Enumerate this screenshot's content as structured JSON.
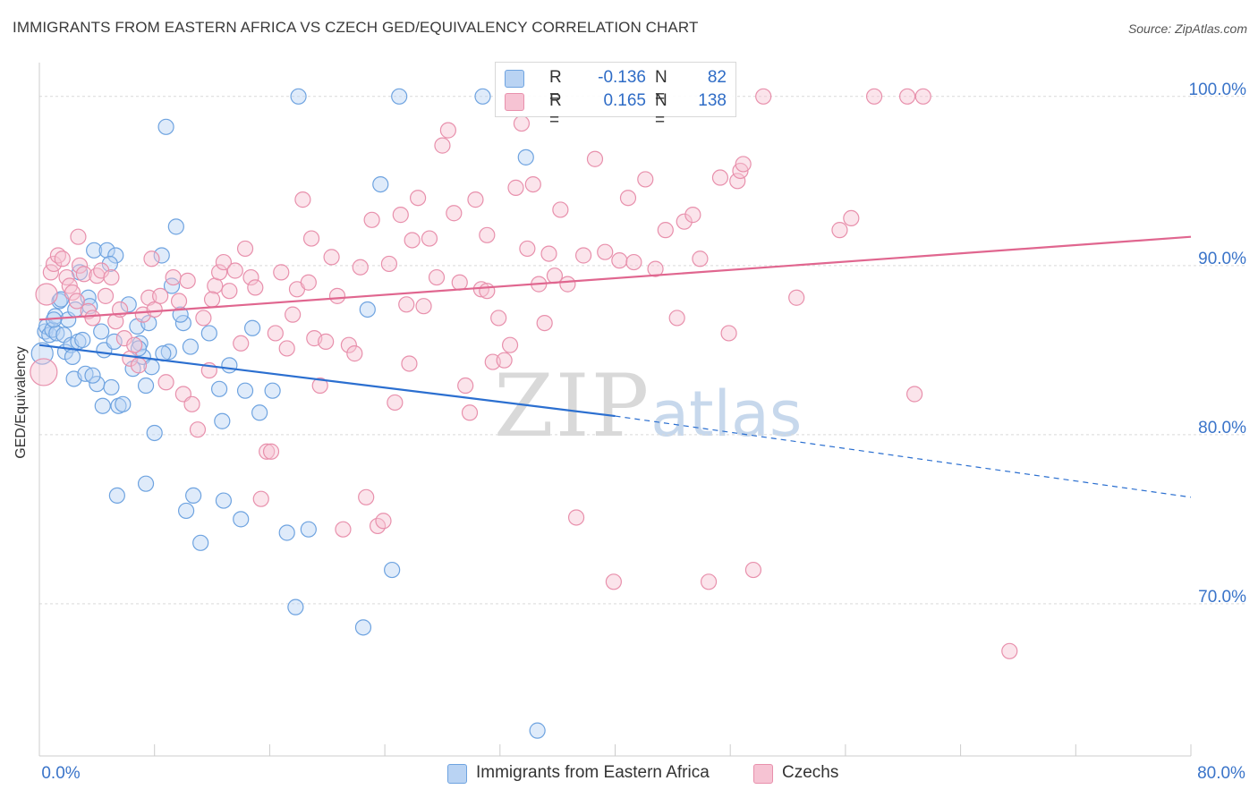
{
  "title": "IMMIGRANTS FROM EASTERN AFRICA VS CZECH GED/EQUIVALENCY CORRELATION CHART",
  "source": "Source: ZipAtlas.com",
  "watermark": {
    "zip": "ZIP",
    "atlas": "atlas"
  },
  "legend": {
    "series1": {
      "r_label": "R =",
      "r_value": "-0.136",
      "n_label": "N =",
      "n_value": "82"
    },
    "series2": {
      "r_label": "R =",
      "r_value": "0.165",
      "n_label": "N =",
      "n_value": "138"
    }
  },
  "colors": {
    "blue": "#6ea3e0",
    "blue_fill": "#b9d3f3",
    "blue_line": "#2b6fd0",
    "pink": "#e890ac",
    "pink_fill": "#f6c3d3",
    "pink_line": "#e0668f",
    "tick_label": "#3a74c9",
    "grid": "#d9d9d9"
  },
  "chart_data": {
    "type": "scatter",
    "title": "IMMIGRANTS FROM EASTERN AFRICA VS CZECH GED/EQUIVALENCY CORRELATION CHART",
    "xlabel": "",
    "ylabel": "GED/Equivalency",
    "xlim": [
      0,
      80
    ],
    "ylim": [
      61,
      102
    ],
    "x_tick_labels": [
      "0.0%",
      "80.0%"
    ],
    "y_ticks": [
      70,
      80,
      90,
      100
    ],
    "y_tick_labels": [
      "70.0%",
      "80.0%",
      "90.0%",
      "100.0%"
    ],
    "grid": true,
    "legend_position": "top-center",
    "series": [
      {
        "name": "Immigrants from Eastern Africa",
        "r": -0.136,
        "n": 82,
        "trend": {
          "x1": 0,
          "y1": 85.3,
          "x2": 40,
          "y2": 81.1,
          "dashed_to_x": 80,
          "dashed_to_y": 76.3
        },
        "points": [
          [
            0.2,
            84.8
          ],
          [
            0.4,
            86.1
          ],
          [
            0.5,
            86.4
          ],
          [
            0.7,
            85.9
          ],
          [
            0.9,
            86.2
          ],
          [
            1.1,
            87.0
          ],
          [
            1.2,
            86.0
          ],
          [
            1.4,
            87.9
          ],
          [
            1.5,
            88.0
          ],
          [
            1.7,
            85.9
          ],
          [
            1.8,
            84.9
          ],
          [
            2.0,
            86.8
          ],
          [
            2.2,
            85.3
          ],
          [
            2.4,
            83.3
          ],
          [
            2.5,
            87.4
          ],
          [
            2.7,
            85.5
          ],
          [
            2.8,
            89.6
          ],
          [
            3.0,
            85.6
          ],
          [
            3.2,
            83.6
          ],
          [
            3.4,
            88.1
          ],
          [
            3.5,
            87.6
          ],
          [
            3.8,
            90.9
          ],
          [
            4.0,
            83.0
          ],
          [
            4.3,
            86.1
          ],
          [
            4.4,
            81.7
          ],
          [
            4.5,
            85.0
          ],
          [
            4.7,
            90.9
          ],
          [
            5.0,
            82.8
          ],
          [
            5.2,
            85.5
          ],
          [
            5.3,
            90.6
          ],
          [
            5.5,
            81.7
          ],
          [
            5.8,
            81.8
          ],
          [
            6.2,
            87.7
          ],
          [
            6.5,
            83.9
          ],
          [
            6.8,
            86.4
          ],
          [
            7.0,
            85.4
          ],
          [
            7.2,
            84.6
          ],
          [
            7.4,
            82.9
          ],
          [
            7.6,
            86.6
          ],
          [
            7.8,
            84.0
          ],
          [
            8.0,
            80.1
          ],
          [
            8.5,
            90.6
          ],
          [
            9.0,
            84.9
          ],
          [
            9.2,
            88.8
          ],
          [
            9.5,
            92.3
          ],
          [
            10.0,
            86.6
          ],
          [
            10.5,
            85.2
          ],
          [
            11.2,
            73.6
          ],
          [
            11.8,
            86.0
          ],
          [
            12.5,
            82.7
          ],
          [
            12.8,
            76.1
          ],
          [
            13.2,
            84.1
          ],
          [
            14.0,
            75.0
          ],
          [
            14.3,
            82.6
          ],
          [
            14.8,
            86.3
          ],
          [
            15.3,
            81.3
          ],
          [
            16.2,
            82.6
          ],
          [
            17.2,
            74.2
          ],
          [
            17.8,
            69.8
          ],
          [
            18.0,
            100.0
          ],
          [
            18.7,
            74.4
          ],
          [
            22.5,
            68.6
          ],
          [
            22.8,
            87.4
          ],
          [
            24.5,
            72.0
          ],
          [
            25.0,
            100.0
          ],
          [
            30.8,
            100.0
          ],
          [
            33.8,
            96.4
          ],
          [
            34.6,
            62.5
          ],
          [
            23.7,
            94.8
          ],
          [
            8.8,
            98.2
          ],
          [
            5.4,
            76.4
          ],
          [
            7.4,
            77.1
          ],
          [
            10.2,
            75.5
          ],
          [
            10.7,
            76.4
          ],
          [
            12.7,
            80.8
          ],
          [
            9.8,
            87.1
          ],
          [
            8.6,
            84.8
          ],
          [
            6.9,
            85.1
          ],
          [
            3.7,
            83.5
          ],
          [
            4.9,
            90.1
          ],
          [
            2.3,
            84.6
          ],
          [
            1.0,
            86.8
          ]
        ]
      },
      {
        "name": "Czechs",
        "r": 0.165,
        "n": 138,
        "trend": {
          "x1": 0,
          "y1": 86.8,
          "x2": 80,
          "y2": 91.7
        },
        "points": [
          [
            0.3,
            83.7
          ],
          [
            0.5,
            88.3
          ],
          [
            0.8,
            89.6
          ],
          [
            1.0,
            90.1
          ],
          [
            1.3,
            90.6
          ],
          [
            1.6,
            90.4
          ],
          [
            1.9,
            89.3
          ],
          [
            2.1,
            88.8
          ],
          [
            2.3,
            88.4
          ],
          [
            2.6,
            87.9
          ],
          [
            2.8,
            90.0
          ],
          [
            3.1,
            89.5
          ],
          [
            3.4,
            87.3
          ],
          [
            3.7,
            86.9
          ],
          [
            4.0,
            89.4
          ],
          [
            4.3,
            89.7
          ],
          [
            4.6,
            88.2
          ],
          [
            5.0,
            89.3
          ],
          [
            5.3,
            86.7
          ],
          [
            5.6,
            87.4
          ],
          [
            5.9,
            85.7
          ],
          [
            6.3,
            84.5
          ],
          [
            6.6,
            85.3
          ],
          [
            6.9,
            84.1
          ],
          [
            7.2,
            87.1
          ],
          [
            7.6,
            88.1
          ],
          [
            8.0,
            87.4
          ],
          [
            8.4,
            88.2
          ],
          [
            8.8,
            83.1
          ],
          [
            9.3,
            89.3
          ],
          [
            9.7,
            87.9
          ],
          [
            10.0,
            82.4
          ],
          [
            10.3,
            89.1
          ],
          [
            10.6,
            81.8
          ],
          [
            11.0,
            80.3
          ],
          [
            11.4,
            86.9
          ],
          [
            11.8,
            83.8
          ],
          [
            12.2,
            88.8
          ],
          [
            12.5,
            89.6
          ],
          [
            12.8,
            90.2
          ],
          [
            13.2,
            88.5
          ],
          [
            13.6,
            89.7
          ],
          [
            14.0,
            85.4
          ],
          [
            14.3,
            91.0
          ],
          [
            14.7,
            89.3
          ],
          [
            15.0,
            88.7
          ],
          [
            15.4,
            76.2
          ],
          [
            15.8,
            79.0
          ],
          [
            16.1,
            79.0
          ],
          [
            16.4,
            86.0
          ],
          [
            16.8,
            89.6
          ],
          [
            17.2,
            85.1
          ],
          [
            17.6,
            87.1
          ],
          [
            17.9,
            88.6
          ],
          [
            18.3,
            93.9
          ],
          [
            18.7,
            89.0
          ],
          [
            19.1,
            85.7
          ],
          [
            19.5,
            82.9
          ],
          [
            19.9,
            85.5
          ],
          [
            20.3,
            90.5
          ],
          [
            20.7,
            88.2
          ],
          [
            21.1,
            74.4
          ],
          [
            21.5,
            85.3
          ],
          [
            21.9,
            84.8
          ],
          [
            22.3,
            89.9
          ],
          [
            22.7,
            76.3
          ],
          [
            23.1,
            92.7
          ],
          [
            23.5,
            74.6
          ],
          [
            23.9,
            74.9
          ],
          [
            24.3,
            90.1
          ],
          [
            24.7,
            81.9
          ],
          [
            25.1,
            93.0
          ],
          [
            25.5,
            87.7
          ],
          [
            25.9,
            91.5
          ],
          [
            26.3,
            94.0
          ],
          [
            26.7,
            87.6
          ],
          [
            27.1,
            91.6
          ],
          [
            27.6,
            89.3
          ],
          [
            28.0,
            97.1
          ],
          [
            28.4,
            98.0
          ],
          [
            28.8,
            93.1
          ],
          [
            29.2,
            89.0
          ],
          [
            29.6,
            82.9
          ],
          [
            29.9,
            81.3
          ],
          [
            30.3,
            93.9
          ],
          [
            30.7,
            88.6
          ],
          [
            31.1,
            91.8
          ],
          [
            31.5,
            84.3
          ],
          [
            31.9,
            86.9
          ],
          [
            32.3,
            84.4
          ],
          [
            32.7,
            85.3
          ],
          [
            33.1,
            94.6
          ],
          [
            33.5,
            98.4
          ],
          [
            33.9,
            91.0
          ],
          [
            34.3,
            94.8
          ],
          [
            34.7,
            88.9
          ],
          [
            35.1,
            86.6
          ],
          [
            35.4,
            90.7
          ],
          [
            35.8,
            89.4
          ],
          [
            36.2,
            93.3
          ],
          [
            36.7,
            88.9
          ],
          [
            37.3,
            75.1
          ],
          [
            37.8,
            90.6
          ],
          [
            38.6,
            96.3
          ],
          [
            39.3,
            90.8
          ],
          [
            39.9,
            71.3
          ],
          [
            40.3,
            90.3
          ],
          [
            40.9,
            94.0
          ],
          [
            41.3,
            90.2
          ],
          [
            42.1,
            95.1
          ],
          [
            42.8,
            89.8
          ],
          [
            43.5,
            92.1
          ],
          [
            44.3,
            86.9
          ],
          [
            44.8,
            92.6
          ],
          [
            45.4,
            93.0
          ],
          [
            45.9,
            90.4
          ],
          [
            46.5,
            71.3
          ],
          [
            47.3,
            95.2
          ],
          [
            47.9,
            86.0
          ],
          [
            48.5,
            95.0
          ],
          [
            48.7,
            95.6
          ],
          [
            48.9,
            96.0
          ],
          [
            49.6,
            72.0
          ],
          [
            50.3,
            100.0
          ],
          [
            52.6,
            88.1
          ],
          [
            55.6,
            92.1
          ],
          [
            56.4,
            92.8
          ],
          [
            58.0,
            100.0
          ],
          [
            60.3,
            100.0
          ],
          [
            60.8,
            82.4
          ],
          [
            61.4,
            100.0
          ],
          [
            67.4,
            67.2
          ],
          [
            2.7,
            91.7
          ],
          [
            7.8,
            90.4
          ],
          [
            12.0,
            88.0
          ],
          [
            18.9,
            91.6
          ],
          [
            25.7,
            84.2
          ],
          [
            31.1,
            88.5
          ]
        ]
      }
    ]
  },
  "bottom_legend": {
    "item1": "Immigrants from Eastern Africa",
    "item2": "Czechs"
  }
}
